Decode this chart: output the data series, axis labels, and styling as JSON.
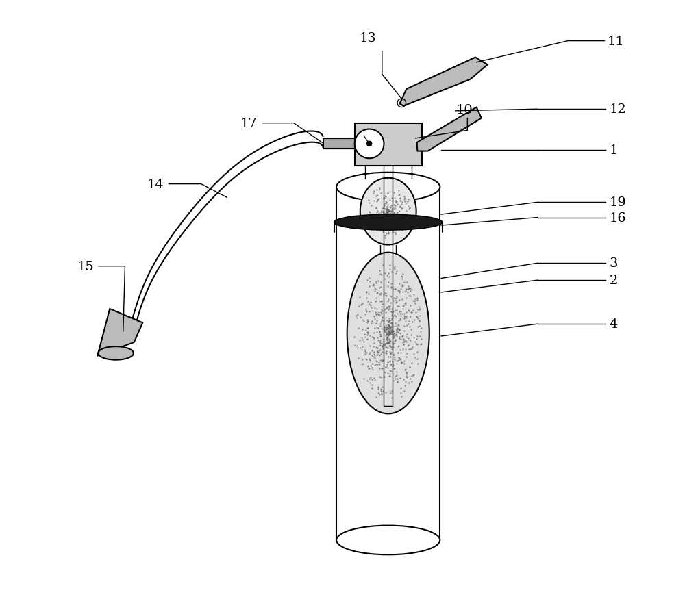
{
  "bg_color": "#ffffff",
  "line_color": "#000000",
  "label_color": "#000000",
  "figsize": [
    10.0,
    8.95
  ],
  "dpi": 100
}
